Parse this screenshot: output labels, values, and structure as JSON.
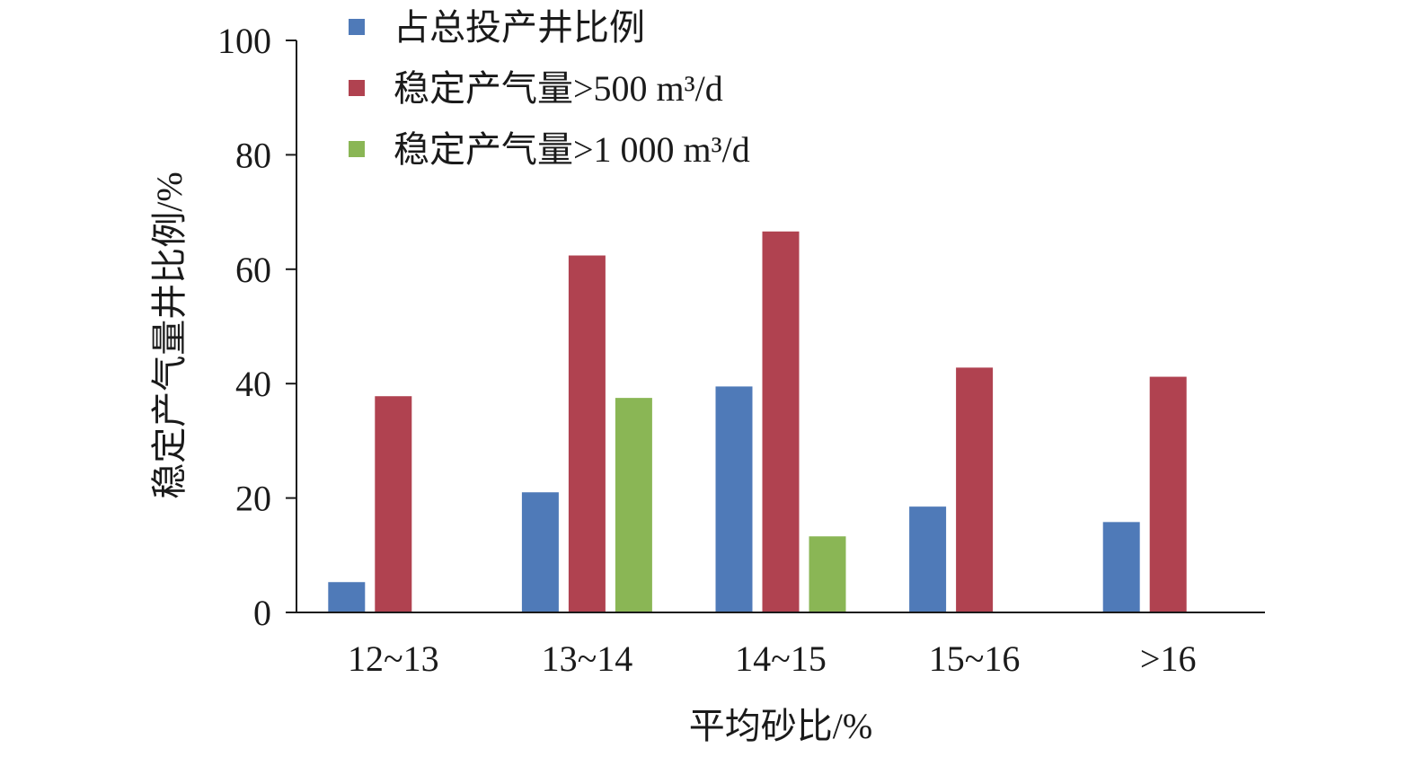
{
  "chart_data": {
    "type": "bar",
    "title": "",
    "xlabel": "平均砂比/%",
    "ylabel": "稳定产气量井比例/%",
    "categories": [
      "12~13",
      "13~14",
      "14~15",
      "15~16",
      ">16"
    ],
    "series": [
      {
        "name": "占总投产井比例",
        "color": "#4f7ab8",
        "values": [
          5.3,
          21.0,
          39.5,
          18.5,
          15.8
        ]
      },
      {
        "name": "稳定产气量>500 m³/d",
        "color": "#b04250",
        "values": [
          37.8,
          62.4,
          66.6,
          42.8,
          41.2
        ]
      },
      {
        "name": "稳定产气量>1 000 m³/d",
        "color": "#8ab655",
        "values": [
          null,
          37.5,
          13.3,
          null,
          null
        ]
      }
    ],
    "ylim": [
      0,
      100
    ],
    "yticks": [
      "0",
      "20",
      "40",
      "60",
      "80",
      "100"
    ],
    "grid": false,
    "legend": "top-left"
  }
}
